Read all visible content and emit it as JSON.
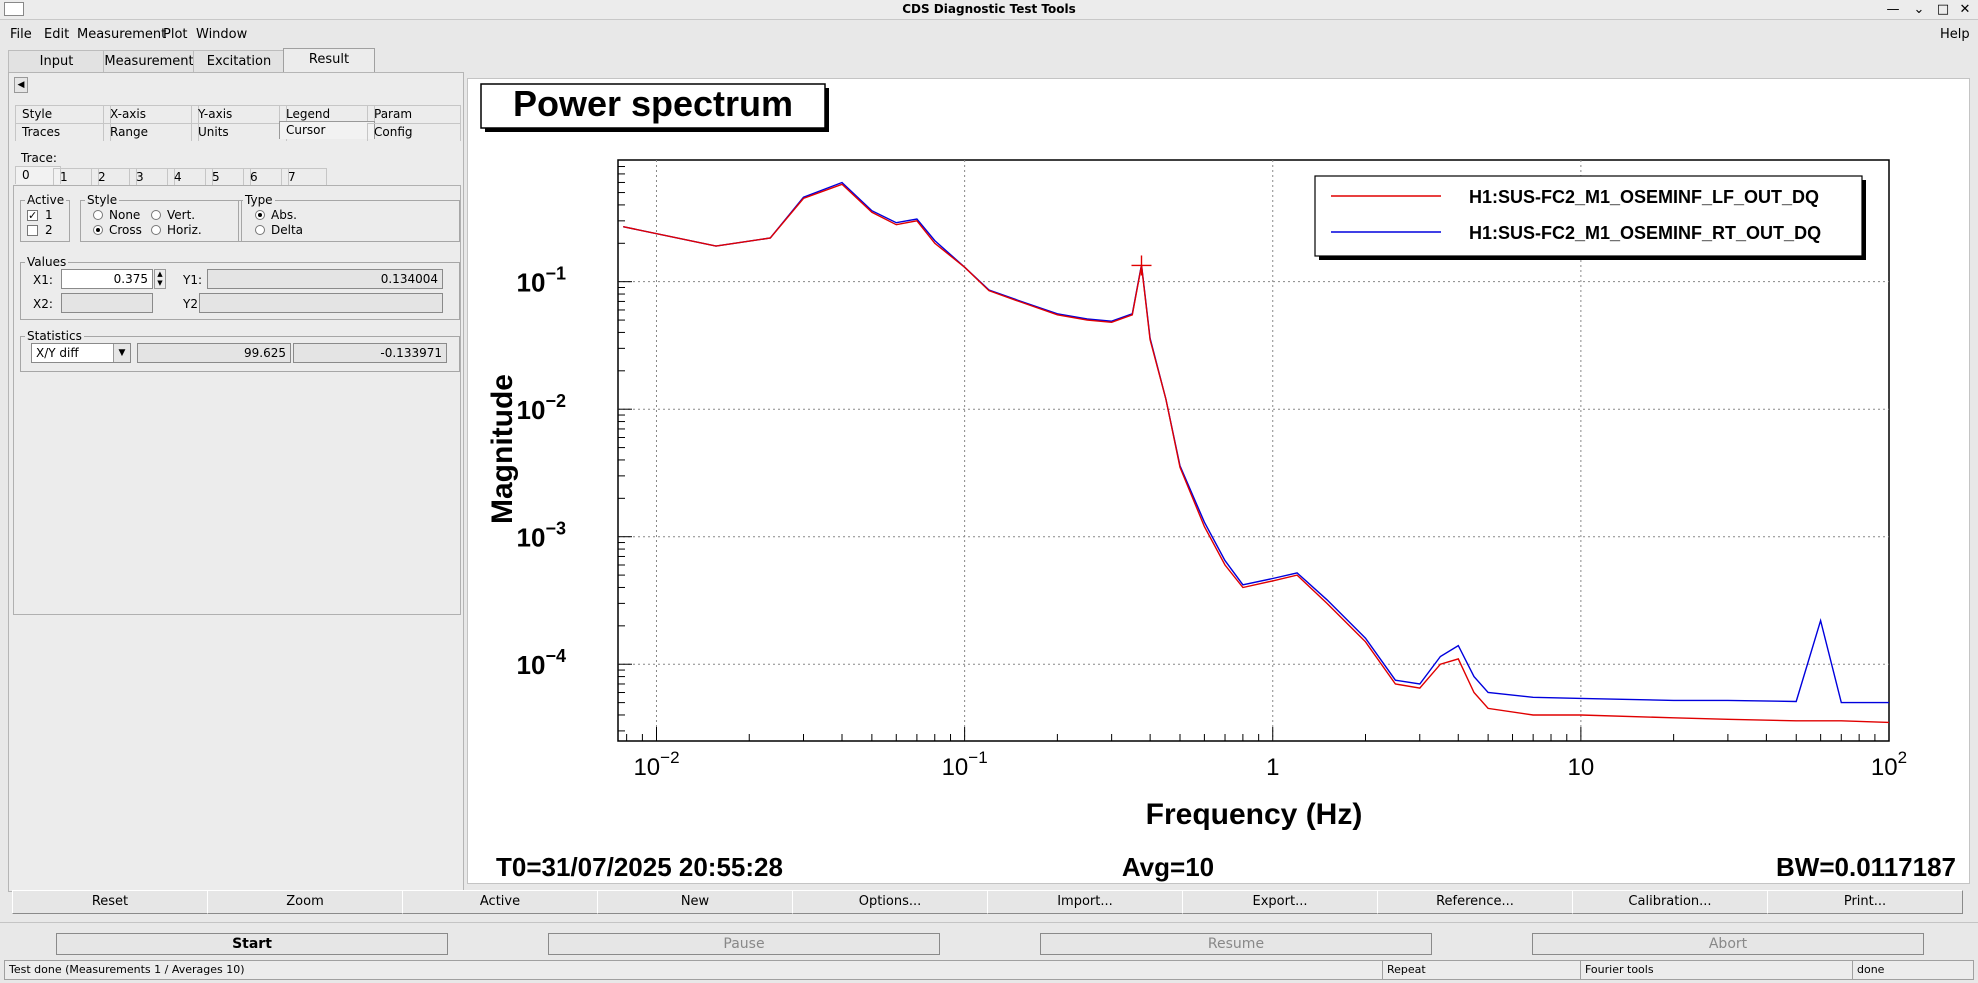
{
  "window": {
    "title": "CDS Diagnostic Test Tools"
  },
  "menu": {
    "file": "File",
    "edit": "Edit",
    "measurement": "Measurement",
    "plot": "Plot",
    "window": "Window",
    "help": "Help"
  },
  "tabs": [
    "Input",
    "Measurement",
    "Excitation",
    "Result"
  ],
  "panel": {
    "subtabs_row1": [
      "Style",
      "X-axis",
      "Y-axis",
      "Legend",
      "Param"
    ],
    "subtabs_row2": [
      "Traces",
      "Range",
      "Units",
      "Cursor",
      "Config"
    ],
    "trace_label": "Trace:",
    "trace_tabs": [
      "0",
      "1",
      "2",
      "3",
      "4",
      "5",
      "6",
      "7"
    ],
    "active": {
      "legend": "Active",
      "item1": "1",
      "item2": "2"
    },
    "style": {
      "legend": "Style",
      "none": "None",
      "vert": "Vert.",
      "cross": "Cross",
      "horiz": "Horiz."
    },
    "type": {
      "legend": "Type",
      "abs": "Abs.",
      "delta": "Delta"
    },
    "values": {
      "legend": "Values",
      "x1_label": "X1:",
      "x1": "0.375",
      "y1_label": "Y1:",
      "y1": "0.134004",
      "x2_label": "X2:",
      "y2_label": "Y2:"
    },
    "statistics": {
      "legend": "Statistics",
      "select": "X/Y diff",
      "v1": "99.625",
      "v2": "-0.133971"
    }
  },
  "plot": {
    "title": "Power spectrum",
    "ylabel": "Magnitude",
    "xlabel": "Frequency (Hz)",
    "t0": "T0=31/07/2025 20:55:28",
    "avg": "Avg=10",
    "bw": "BW=0.0117187",
    "xticks": [
      {
        "base": "10",
        "exp": "−2"
      },
      {
        "base": "10",
        "exp": "−1"
      },
      {
        "base": "1",
        "exp": ""
      },
      {
        "base": "10",
        "exp": ""
      },
      {
        "base": "10",
        "exp": "2"
      }
    ],
    "yticks": [
      {
        "base": "10",
        "exp": "−1"
      },
      {
        "base": "10",
        "exp": "−2"
      },
      {
        "base": "10",
        "exp": "−3"
      },
      {
        "base": "10",
        "exp": "−4"
      }
    ]
  },
  "chart_data": {
    "type": "line",
    "title": "Power spectrum",
    "xlabel": "Frequency (Hz)",
    "ylabel": "Magnitude",
    "xscale": "log",
    "yscale": "log",
    "xlim": [
      0.0075,
      100
    ],
    "ylim": [
      2.5e-05,
      0.9
    ],
    "grid": true,
    "legend_position": "top-right",
    "cursor": {
      "x": 0.375,
      "y": 0.134004
    },
    "series": [
      {
        "name": "H1:SUS-FC2_M1_OSEMINF_LF_OUT_DQ",
        "color": "#e00000",
        "x": [
          0.0078,
          0.0156,
          0.0234,
          0.03,
          0.04,
          0.05,
          0.06,
          0.07,
          0.08,
          0.1,
          0.12,
          0.15,
          0.2,
          0.25,
          0.3,
          0.35,
          0.375,
          0.4,
          0.45,
          0.5,
          0.6,
          0.7,
          0.8,
          1.0,
          1.2,
          1.5,
          2.0,
          2.5,
          3.0,
          3.5,
          4.0,
          4.5,
          5.0,
          7.0,
          10,
          20,
          30,
          50,
          70,
          100
        ],
        "y": [
          0.27,
          0.19,
          0.22,
          0.45,
          0.58,
          0.35,
          0.28,
          0.3,
          0.2,
          0.13,
          0.085,
          0.07,
          0.055,
          0.05,
          0.048,
          0.055,
          0.134,
          0.035,
          0.012,
          0.0035,
          0.0012,
          0.0006,
          0.0004,
          0.00045,
          0.0005,
          0.0003,
          0.00015,
          7e-05,
          6.5e-05,
          0.0001,
          0.00011,
          6e-05,
          4.5e-05,
          4e-05,
          4e-05,
          3.8e-05,
          3.7e-05,
          3.6e-05,
          3.6e-05,
          3.5e-05
        ]
      },
      {
        "name": "H1:SUS-FC2_M1_OSEMINF_RT_OUT_DQ",
        "color": "#0000dd",
        "x": [
          0.0078,
          0.0156,
          0.0234,
          0.03,
          0.04,
          0.05,
          0.06,
          0.07,
          0.08,
          0.1,
          0.12,
          0.15,
          0.2,
          0.25,
          0.3,
          0.35,
          0.375,
          0.4,
          0.45,
          0.5,
          0.6,
          0.7,
          0.8,
          1.0,
          1.2,
          1.5,
          2.0,
          2.5,
          3.0,
          3.5,
          4.0,
          4.5,
          5.0,
          7.0,
          10,
          20,
          30,
          50,
          60,
          70,
          100
        ],
        "y": [
          0.27,
          0.19,
          0.22,
          0.46,
          0.6,
          0.36,
          0.29,
          0.31,
          0.21,
          0.13,
          0.086,
          0.071,
          0.056,
          0.051,
          0.049,
          0.056,
          0.136,
          0.036,
          0.012,
          0.0036,
          0.0013,
          0.00065,
          0.00042,
          0.00047,
          0.00052,
          0.00032,
          0.00016,
          7.5e-05,
          7e-05,
          0.000115,
          0.00014,
          8e-05,
          6e-05,
          5.5e-05,
          5.4e-05,
          5.2e-05,
          5.2e-05,
          5.1e-05,
          0.00022,
          5e-05,
          5e-05
        ]
      }
    ]
  },
  "buttons": [
    "Reset",
    "Zoom",
    "Active",
    "New",
    "Options...",
    "Import...",
    "Export...",
    "Reference...",
    "Calibration...",
    "Print..."
  ],
  "controls": {
    "start": "Start",
    "pause": "Pause",
    "resume": "Resume",
    "abort": "Abort"
  },
  "status": {
    "message": "Test done (Measurements 1 / Averages 10)",
    "repeat": "Repeat",
    "tools": "Fourier tools",
    "state": "done"
  }
}
